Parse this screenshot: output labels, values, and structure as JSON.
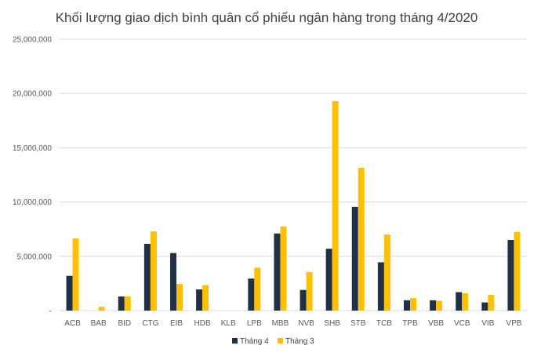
{
  "chart_data": {
    "type": "bar",
    "title": "Khối lượng giao dịch bình quân cổ phiếu ngân hàng trong tháng 4/2020",
    "xlabel": "",
    "ylabel": "",
    "categories": [
      "ACB",
      "BAB",
      "BID",
      "CTG",
      "EIB",
      "HDB",
      "KLB",
      "LPB",
      "MBB",
      "NVB",
      "SHB",
      "STB",
      "TCB",
      "TPB",
      "VBB",
      "VCB",
      "VIB",
      "VPB"
    ],
    "series": [
      {
        "name": "Tháng 4",
        "color": "#1f3047",
        "values": [
          3200000,
          0,
          1300000,
          6150000,
          5300000,
          1950000,
          0,
          2950000,
          7100000,
          1900000,
          5700000,
          9550000,
          4450000,
          950000,
          950000,
          1700000,
          750000,
          6500000
        ]
      },
      {
        "name": "Tháng 3",
        "color": "#ffc000",
        "values": [
          6650000,
          350000,
          1300000,
          7300000,
          2450000,
          2350000,
          0,
          3950000,
          7750000,
          3550000,
          19300000,
          13150000,
          7000000,
          1150000,
          900000,
          1600000,
          1450000,
          7250000
        ]
      }
    ],
    "ylim": [
      0,
      25000000
    ],
    "yticks": [
      0,
      5000000,
      10000000,
      15000000,
      20000000,
      25000000
    ],
    "ytick_labels": [
      "-",
      "5,000,000",
      "10,000,000",
      "15,000,000",
      "20,000,000",
      "25,000,000"
    ],
    "grid": true,
    "legend": "bottom-center"
  }
}
